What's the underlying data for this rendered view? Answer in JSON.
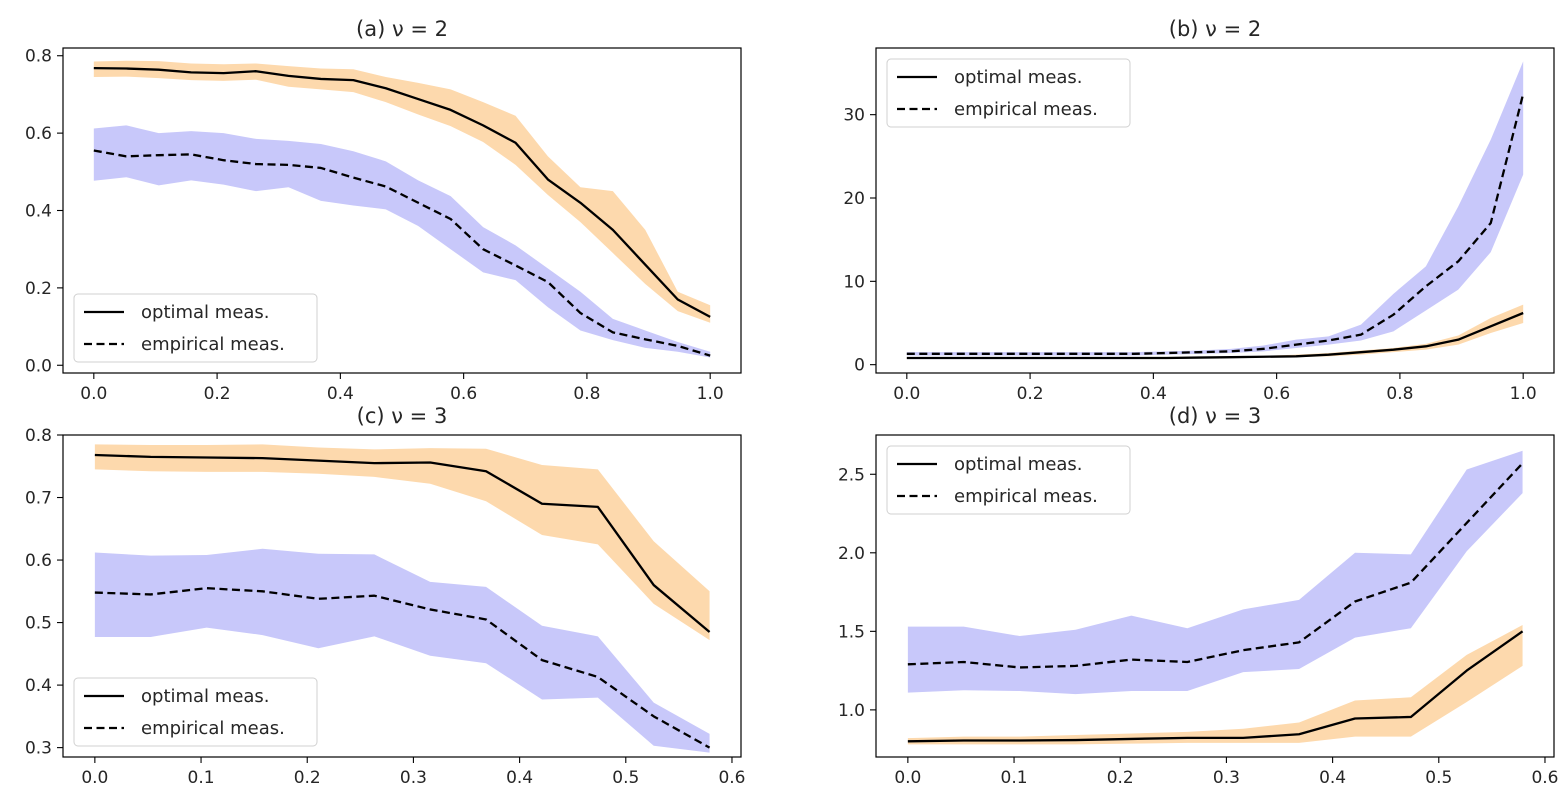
{
  "chart_data": [
    {
      "type": "line",
      "title": "(a) ν = 2",
      "xlabel": "",
      "ylabel": "",
      "xlim": [
        -0.05,
        1.05
      ],
      "ylim": [
        -0.02,
        0.82
      ],
      "xticks": [
        0.0,
        0.2,
        0.4,
        0.6,
        0.8,
        1.0
      ],
      "xtick_labels": [
        "0.0",
        "0.2",
        "0.4",
        "0.6",
        "0.8",
        "1.0"
      ],
      "yticks": [
        0.0,
        0.2,
        0.4,
        0.6,
        0.8
      ],
      "ytick_labels": [
        "0.0",
        "0.2",
        "0.4",
        "0.6",
        "0.8"
      ],
      "legend": {
        "placement": "lower-left",
        "entries": [
          "optimal meas.",
          "empirical meas."
        ]
      },
      "x": [
        0.0,
        0.0526,
        0.1053,
        0.1579,
        0.2105,
        0.2632,
        0.3158,
        0.3684,
        0.4211,
        0.4737,
        0.5263,
        0.5789,
        0.6316,
        0.6842,
        0.7368,
        0.7895,
        0.8421,
        0.8947,
        0.9474,
        1.0
      ],
      "series": [
        {
          "name": "optimal meas.",
          "style": "solid",
          "band_color": "#fdd9ad",
          "values": [
            0.768,
            0.767,
            0.764,
            0.757,
            0.755,
            0.76,
            0.748,
            0.74,
            0.737,
            0.716,
            0.688,
            0.66,
            0.62,
            0.575,
            0.48,
            0.42,
            0.35,
            0.26,
            0.17,
            0.125
          ],
          "lower": [
            0.745,
            0.746,
            0.742,
            0.737,
            0.735,
            0.738,
            0.72,
            0.713,
            0.706,
            0.68,
            0.648,
            0.618,
            0.577,
            0.518,
            0.44,
            0.37,
            0.29,
            0.21,
            0.14,
            0.11
          ],
          "upper": [
            0.785,
            0.787,
            0.786,
            0.78,
            0.778,
            0.78,
            0.773,
            0.767,
            0.765,
            0.745,
            0.73,
            0.713,
            0.68,
            0.645,
            0.54,
            0.46,
            0.45,
            0.35,
            0.19,
            0.155
          ]
        },
        {
          "name": "empirical meas.",
          "style": "dashed",
          "band_color": "#c8c8fa",
          "values": [
            0.555,
            0.54,
            0.543,
            0.545,
            0.53,
            0.52,
            0.518,
            0.51,
            0.485,
            0.462,
            0.42,
            0.378,
            0.3,
            0.258,
            0.215,
            0.135,
            0.085,
            0.067,
            0.05,
            0.025
          ],
          "lower": [
            0.477,
            0.486,
            0.465,
            0.478,
            0.467,
            0.45,
            0.46,
            0.425,
            0.413,
            0.403,
            0.36,
            0.3,
            0.24,
            0.22,
            0.15,
            0.09,
            0.065,
            0.045,
            0.035,
            0.02
          ],
          "upper": [
            0.612,
            0.62,
            0.6,
            0.605,
            0.6,
            0.585,
            0.58,
            0.572,
            0.553,
            0.527,
            0.478,
            0.437,
            0.357,
            0.31,
            0.25,
            0.19,
            0.12,
            0.09,
            0.06,
            0.035
          ]
        }
      ]
    },
    {
      "type": "line",
      "title": "(b) ν = 2",
      "xlabel": "",
      "ylabel": "",
      "xlim": [
        -0.05,
        1.05
      ],
      "ylim": [
        -1.0,
        38.0
      ],
      "xticks": [
        0.0,
        0.2,
        0.4,
        0.6,
        0.8,
        1.0
      ],
      "xtick_labels": [
        "0.0",
        "0.2",
        "0.4",
        "0.6",
        "0.8",
        "1.0"
      ],
      "yticks": [
        0,
        10,
        20,
        30
      ],
      "ytick_labels": [
        "0",
        "10",
        "20",
        "30"
      ],
      "legend": {
        "placement": "upper-left",
        "entries": [
          "optimal meas.",
          "empirical meas."
        ]
      },
      "x": [
        0.0,
        0.0526,
        0.1053,
        0.1579,
        0.2105,
        0.2632,
        0.3158,
        0.3684,
        0.4211,
        0.4737,
        0.5263,
        0.5789,
        0.6316,
        0.6842,
        0.7368,
        0.7895,
        0.8421,
        0.8947,
        0.9474,
        1.0
      ],
      "series": [
        {
          "name": "optimal meas.",
          "style": "solid",
          "band_color": "#fdd9ad",
          "values": [
            0.8,
            0.8,
            0.8,
            0.8,
            0.8,
            0.8,
            0.8,
            0.8,
            0.8,
            0.85,
            0.9,
            0.95,
            1.0,
            1.2,
            1.5,
            1.8,
            2.2,
            3.0,
            4.6,
            6.2
          ],
          "lower": [
            0.7,
            0.7,
            0.7,
            0.7,
            0.7,
            0.7,
            0.7,
            0.7,
            0.7,
            0.75,
            0.8,
            0.85,
            0.9,
            1.0,
            1.2,
            1.5,
            1.8,
            2.4,
            3.8,
            5.0
          ],
          "upper": [
            0.9,
            0.9,
            0.9,
            0.9,
            0.9,
            0.9,
            0.9,
            0.9,
            0.9,
            0.95,
            1.0,
            1.05,
            1.2,
            1.4,
            1.7,
            2.0,
            2.5,
            3.5,
            5.6,
            7.2
          ]
        },
        {
          "name": "empirical meas.",
          "style": "dashed",
          "band_color": "#c8c8fa",
          "values": [
            1.3,
            1.3,
            1.3,
            1.3,
            1.3,
            1.3,
            1.3,
            1.3,
            1.4,
            1.5,
            1.6,
            1.9,
            2.4,
            2.9,
            3.6,
            6.0,
            9.4,
            12.4,
            17.0,
            32.5
          ],
          "lower": [
            1.1,
            1.1,
            1.1,
            1.1,
            1.1,
            1.1,
            1.1,
            1.1,
            1.2,
            1.3,
            1.4,
            1.6,
            2.0,
            2.4,
            2.9,
            4.0,
            6.5,
            9.0,
            13.5,
            22.8
          ],
          "upper": [
            1.5,
            1.5,
            1.5,
            1.5,
            1.5,
            1.5,
            1.5,
            1.5,
            1.6,
            1.7,
            1.9,
            2.3,
            3.0,
            3.4,
            4.8,
            8.5,
            11.8,
            19.0,
            27.0,
            36.4
          ]
        }
      ]
    },
    {
      "type": "line",
      "title": "(c) ν = 3",
      "xlabel": "",
      "ylabel": "",
      "xlim": [
        -0.03,
        0.6085
      ],
      "ylim": [
        0.285,
        0.8
      ],
      "xticks": [
        0.0,
        0.1,
        0.2,
        0.3,
        0.4,
        0.5,
        0.6
      ],
      "xtick_labels": [
        "0.0",
        "0.1",
        "0.2",
        "0.3",
        "0.4",
        "0.5",
        "0.6"
      ],
      "yticks": [
        0.3,
        0.4,
        0.5,
        0.6,
        0.7,
        0.8
      ],
      "ytick_labels": [
        "0.3",
        "0.4",
        "0.5",
        "0.6",
        "0.7",
        "0.8"
      ],
      "legend": {
        "placement": "lower-left",
        "entries": [
          "optimal meas.",
          "empirical meas."
        ]
      },
      "x": [
        0.0,
        0.0526,
        0.1053,
        0.1579,
        0.2105,
        0.2632,
        0.3158,
        0.3684,
        0.4211,
        0.4737,
        0.5263,
        0.5789
      ],
      "series": [
        {
          "name": "optimal meas.",
          "style": "solid",
          "band_color": "#fdd9ad",
          "values": [
            0.768,
            0.765,
            0.764,
            0.763,
            0.759,
            0.755,
            0.756,
            0.742,
            0.69,
            0.685,
            0.56,
            0.485
          ],
          "lower": [
            0.745,
            0.742,
            0.741,
            0.741,
            0.738,
            0.733,
            0.722,
            0.694,
            0.64,
            0.625,
            0.53,
            0.472
          ],
          "upper": [
            0.785,
            0.784,
            0.784,
            0.785,
            0.78,
            0.777,
            0.779,
            0.778,
            0.752,
            0.745,
            0.63,
            0.55
          ]
        },
        {
          "name": "empirical meas.",
          "style": "dashed",
          "band_color": "#c8c8fa",
          "values": [
            0.548,
            0.545,
            0.555,
            0.55,
            0.538,
            0.543,
            0.521,
            0.505,
            0.44,
            0.413,
            0.35,
            0.3
          ],
          "lower": [
            0.477,
            0.477,
            0.492,
            0.48,
            0.459,
            0.478,
            0.447,
            0.435,
            0.377,
            0.38,
            0.303,
            0.292
          ],
          "upper": [
            0.612,
            0.607,
            0.608,
            0.618,
            0.61,
            0.609,
            0.565,
            0.557,
            0.495,
            0.478,
            0.372,
            0.322
          ]
        }
      ]
    },
    {
      "type": "line",
      "title": "(d) ν = 3",
      "xlabel": "",
      "ylabel": "",
      "xlim": [
        -0.03,
        0.6085
      ],
      "ylim": [
        0.7,
        2.75
      ],
      "xticks": [
        0.0,
        0.1,
        0.2,
        0.3,
        0.4,
        0.5,
        0.6
      ],
      "xtick_labels": [
        "0.0",
        "0.1",
        "0.2",
        "0.3",
        "0.4",
        "0.5",
        "0.6"
      ],
      "yticks": [
        1.0,
        1.5,
        2.0,
        2.5
      ],
      "ytick_labels": [
        "1.0",
        "1.5",
        "2.0",
        "2.5"
      ],
      "legend": {
        "placement": "upper-left",
        "entries": [
          "optimal meas.",
          "empirical meas."
        ]
      },
      "x": [
        0.0,
        0.0526,
        0.1053,
        0.1579,
        0.2105,
        0.2632,
        0.3158,
        0.3684,
        0.4211,
        0.4737,
        0.5263,
        0.5789
      ],
      "series": [
        {
          "name": "optimal meas.",
          "style": "solid",
          "band_color": "#fdd9ad",
          "values": [
            0.8,
            0.805,
            0.805,
            0.808,
            0.815,
            0.822,
            0.822,
            0.845,
            0.945,
            0.955,
            1.25,
            1.5
          ],
          "lower": [
            0.78,
            0.78,
            0.78,
            0.78,
            0.785,
            0.79,
            0.79,
            0.79,
            0.83,
            0.83,
            1.05,
            1.28
          ],
          "upper": [
            0.82,
            0.83,
            0.83,
            0.84,
            0.85,
            0.86,
            0.88,
            0.92,
            1.06,
            1.08,
            1.35,
            1.54
          ]
        },
        {
          "name": "empirical meas.",
          "style": "dashed",
          "band_color": "#c8c8fa",
          "values": [
            1.29,
            1.305,
            1.27,
            1.28,
            1.32,
            1.305,
            1.38,
            1.43,
            1.69,
            1.81,
            2.19,
            2.57
          ],
          "lower": [
            1.11,
            1.125,
            1.12,
            1.1,
            1.12,
            1.12,
            1.24,
            1.26,
            1.46,
            1.52,
            2.01,
            2.38
          ],
          "upper": [
            1.53,
            1.53,
            1.47,
            1.51,
            1.6,
            1.52,
            1.64,
            1.7,
            2.0,
            1.99,
            2.53,
            2.65
          ]
        }
      ]
    }
  ]
}
